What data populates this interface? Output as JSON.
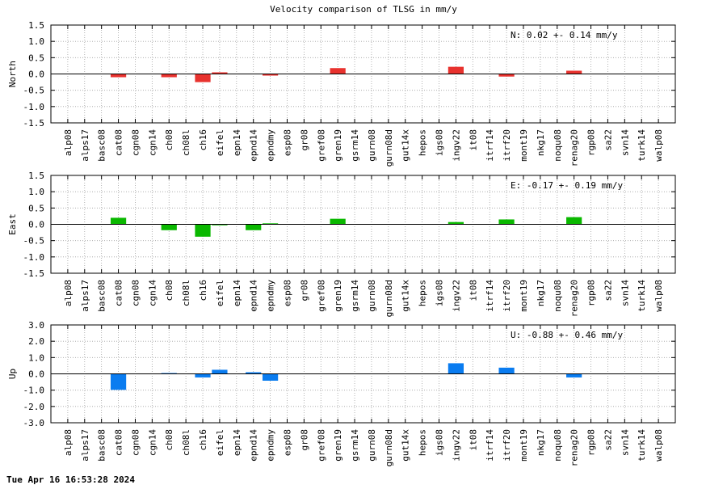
{
  "title": "Velocity comparison of TLSG in mm/y",
  "timestamp": "Tue Apr 16 16:53:28 2024",
  "colors": {
    "north": "#e8322e",
    "east": "#0ab800",
    "up": "#0a7cf0"
  },
  "chart_data": [
    {
      "type": "bar",
      "ylabel": "North",
      "ylim": [
        -1.5,
        1.5
      ],
      "yticks": [
        "1.5",
        "1.0",
        "0.5",
        "0.0",
        "-0.5",
        "-1.0",
        "-1.5"
      ],
      "summary": "N:   0.02 +-  0.14 mm/y",
      "grid": true,
      "categories": [
        "alp08",
        "alps17",
        "basc08",
        "cat08",
        "cgn08",
        "cgn14",
        "ch08",
        "ch08l",
        "ch16",
        "eifel",
        "epn14",
        "epnd14",
        "epndmy",
        "esp08",
        "gr08",
        "gref08",
        "gren19",
        "gsrm14",
        "gurn08",
        "gurn08d",
        "gut14x",
        "hepos",
        "igs08",
        "ingv22",
        "it08",
        "itrf14",
        "itrf20",
        "mont19",
        "nkg17",
        "noqu08",
        "renag20",
        "rgp08",
        "sa22",
        "svn14",
        "turk14",
        "walp08"
      ],
      "values": [
        null,
        null,
        null,
        -0.1,
        null,
        null,
        -0.1,
        null,
        -0.25,
        0.05,
        null,
        null,
        -0.05,
        null,
        null,
        null,
        0.18,
        null,
        null,
        null,
        null,
        null,
        null,
        0.22,
        null,
        null,
        -0.08,
        null,
        null,
        null,
        0.1,
        null,
        null,
        null,
        null,
        null
      ]
    },
    {
      "type": "bar",
      "ylabel": "East",
      "ylim": [
        -1.5,
        1.5
      ],
      "yticks": [
        "1.5",
        "1.0",
        "0.5",
        "0.0",
        "-0.5",
        "-1.0",
        "-1.5"
      ],
      "summary": "E:  -0.17 +-  0.19 mm/y",
      "grid": true,
      "categories": [
        "alp08",
        "alps17",
        "basc08",
        "cat08",
        "cgn08",
        "cgn14",
        "ch08",
        "ch08l",
        "ch16",
        "eifel",
        "epn14",
        "epnd14",
        "epndmy",
        "esp08",
        "gr08",
        "gref08",
        "gren19",
        "gsrm14",
        "gurn08",
        "gurn08d",
        "gut14x",
        "hepos",
        "igs08",
        "ingv22",
        "it08",
        "itrf14",
        "itrf20",
        "mont19",
        "nkg17",
        "noqu08",
        "renag20",
        "rgp08",
        "sa22",
        "svn14",
        "turk14",
        "walp08"
      ],
      "values": [
        null,
        null,
        null,
        0.2,
        null,
        null,
        -0.18,
        null,
        -0.38,
        -0.03,
        null,
        -0.18,
        0.03,
        null,
        null,
        null,
        0.17,
        null,
        null,
        null,
        null,
        null,
        null,
        0.07,
        null,
        null,
        0.15,
        null,
        null,
        null,
        0.22,
        null,
        null,
        null,
        null,
        null
      ]
    },
    {
      "type": "bar",
      "ylabel": "Up",
      "ylim": [
        -3.0,
        3.0
      ],
      "yticks": [
        "3.0",
        "2.0",
        "1.0",
        "0.0",
        "-1.0",
        "-2.0",
        "-3.0"
      ],
      "summary": "U:  -0.88 +-  0.46 mm/y",
      "grid": true,
      "categories": [
        "alp08",
        "alps17",
        "basc08",
        "cat08",
        "cgn08",
        "cgn14",
        "ch08",
        "ch08l",
        "ch16",
        "eifel",
        "epn14",
        "epnd14",
        "epndmy",
        "esp08",
        "gr08",
        "gref08",
        "gren19",
        "gsrm14",
        "gurn08",
        "gurn08d",
        "gut14x",
        "hepos",
        "igs08",
        "ingv22",
        "it08",
        "itrf14",
        "itrf20",
        "mont19",
        "nkg17",
        "noqu08",
        "renag20",
        "rgp08",
        "sa22",
        "svn14",
        "turk14",
        "walp08"
      ],
      "values": [
        null,
        null,
        null,
        -0.98,
        null,
        null,
        0.05,
        null,
        -0.22,
        0.25,
        null,
        0.1,
        -0.42,
        null,
        null,
        null,
        null,
        null,
        null,
        null,
        null,
        null,
        null,
        0.65,
        null,
        null,
        0.38,
        null,
        null,
        null,
        -0.22,
        null,
        null,
        null,
        null,
        null
      ]
    }
  ]
}
